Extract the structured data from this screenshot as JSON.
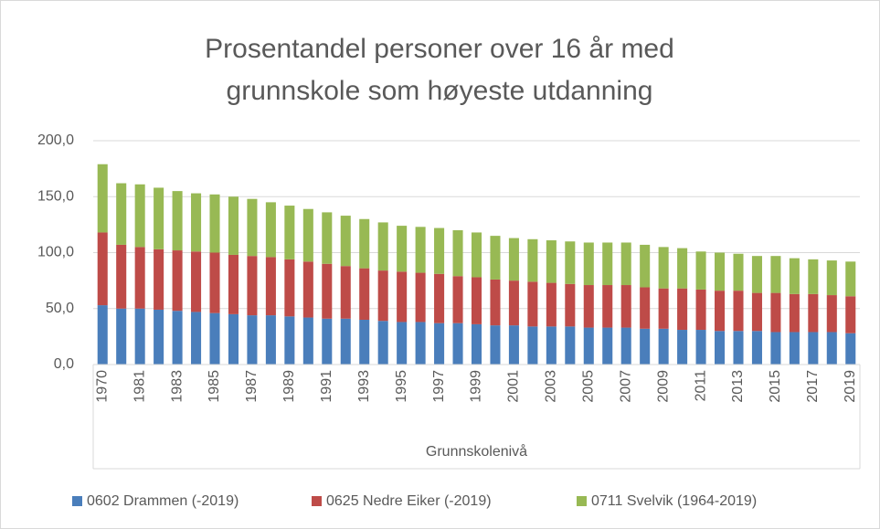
{
  "chart_data": {
    "type": "stacked_bar",
    "title": "Prosentandel personer over 16 år med grunnskole som høyeste utdanning",
    "x_label": "Grunnskolenivå",
    "categories": [
      "1970",
      null,
      "1981",
      null,
      "1983",
      null,
      "1985",
      null,
      "1987",
      null,
      "1989",
      null,
      "1991",
      null,
      "1993",
      null,
      "1995",
      null,
      "1997",
      null,
      "1999",
      null,
      "2001",
      null,
      "2003",
      null,
      "2005",
      null,
      "2007",
      null,
      "2009",
      null,
      "2011",
      null,
      "2013",
      null,
      "2015",
      null,
      "2017",
      null,
      "2019"
    ],
    "series": [
      {
        "name": "0602 Drammen (-2019)",
        "color": "#4a7ebb",
        "values": [
          53,
          50,
          50,
          49,
          48,
          47,
          46,
          45,
          44,
          44,
          43,
          42,
          41,
          41,
          40,
          39,
          38,
          38,
          37,
          37,
          36,
          35,
          35,
          34,
          34,
          34,
          33,
          33,
          33,
          32,
          32,
          31,
          31,
          30,
          30,
          30,
          29,
          29,
          29,
          29,
          28
        ]
      },
      {
        "name": "0625 Nedre Eiker (-2019)",
        "color": "#be4b48",
        "values": [
          65,
          57,
          55,
          54,
          54,
          54,
          54,
          53,
          53,
          52,
          51,
          50,
          49,
          47,
          46,
          45,
          45,
          44,
          44,
          42,
          42,
          41,
          40,
          40,
          39,
          38,
          38,
          38,
          38,
          37,
          36,
          37,
          36,
          36,
          36,
          34,
          35,
          34,
          34,
          33,
          33
        ]
      },
      {
        "name": "0711 Svelvik (1964-2019)",
        "color": "#98b954",
        "values": [
          61,
          55,
          56,
          55,
          53,
          52,
          52,
          52,
          51,
          49,
          48,
          47,
          46,
          45,
          44,
          43,
          41,
          41,
          41,
          41,
          40,
          39,
          38,
          38,
          38,
          38,
          38,
          38,
          38,
          38,
          37,
          36,
          34,
          34,
          33,
          33,
          33,
          32,
          31,
          31,
          31
        ]
      }
    ],
    "ylim": [
      0,
      200
    ],
    "yticks": [
      {
        "value": 0,
        "label": "0,0"
      },
      {
        "value": 50,
        "label": "50,0"
      },
      {
        "value": 100,
        "label": "100,0"
      },
      {
        "value": 150,
        "label": "150,0"
      },
      {
        "value": 200,
        "label": "200,0"
      }
    ],
    "grid": true
  }
}
